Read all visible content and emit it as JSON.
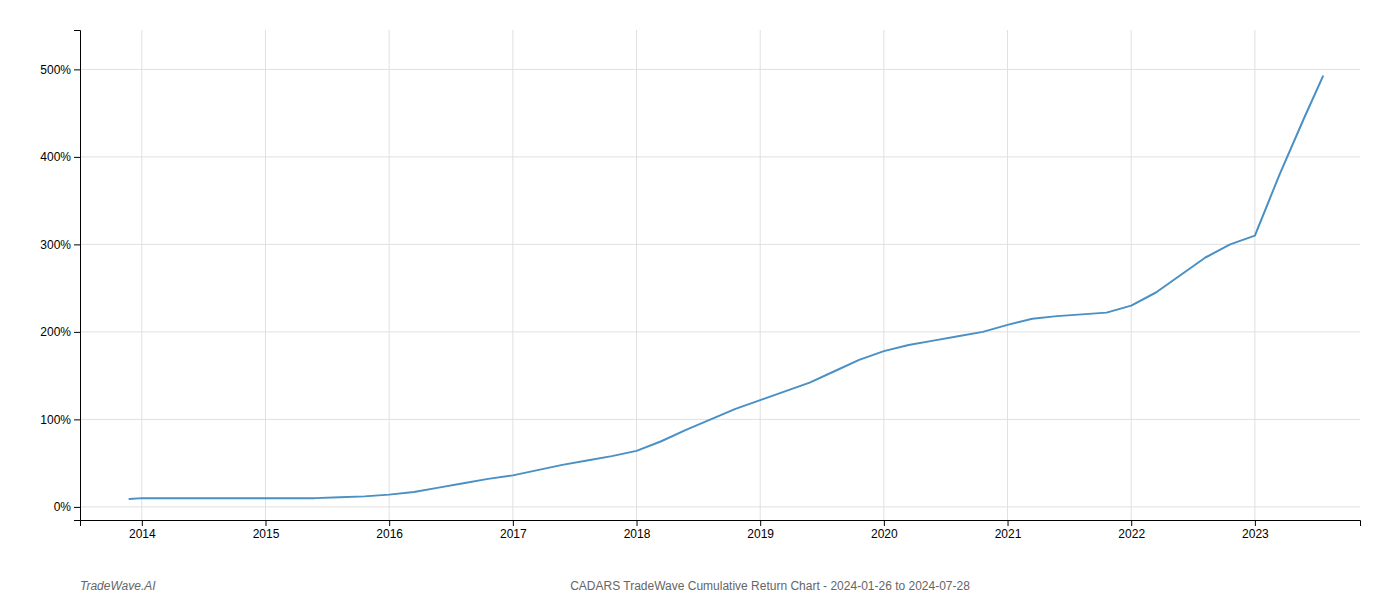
{
  "chart_data": {
    "type": "line",
    "annotations": [
      "TradeWave.AI",
      "CADARS TradeWave Cumulative Return Chart - 2024-01-26 to 2024-07-28"
    ],
    "color": "#4a90c4",
    "grid": true,
    "x": [
      2013.9,
      2014.0,
      2014.2,
      2014.4,
      2014.6,
      2014.8,
      2015.0,
      2015.2,
      2015.4,
      2015.6,
      2015.8,
      2016.0,
      2016.2,
      2016.4,
      2016.6,
      2016.8,
      2017.0,
      2017.2,
      2017.4,
      2017.6,
      2017.8,
      2018.0,
      2018.2,
      2018.4,
      2018.6,
      2018.8,
      2019.0,
      2019.2,
      2019.4,
      2019.6,
      2019.8,
      2020.0,
      2020.2,
      2020.4,
      2020.6,
      2020.8,
      2021.0,
      2021.2,
      2021.4,
      2021.6,
      2021.8,
      2022.0,
      2022.2,
      2022.4,
      2022.6,
      2022.8,
      2023.0,
      2023.2,
      2023.4,
      2023.55
    ],
    "values": [
      9,
      10,
      10,
      10,
      10,
      10,
      10,
      10,
      10,
      11,
      12,
      14,
      17,
      22,
      27,
      32,
      36,
      42,
      48,
      53,
      58,
      64,
      75,
      88,
      100,
      112,
      122,
      132,
      142,
      155,
      168,
      178,
      185,
      190,
      195,
      200,
      208,
      215,
      218,
      220,
      222,
      230,
      245,
      265,
      285,
      300,
      310,
      380,
      445,
      492
    ],
    "xlim": [
      2013.5,
      2023.85
    ],
    "ylim": [
      -15,
      545
    ],
    "xticks": [
      2014,
      2015,
      2016,
      2017,
      2018,
      2019,
      2020,
      2021,
      2022,
      2023
    ],
    "yticks": [
      {
        "value": 0,
        "label": "0%"
      },
      {
        "value": 100,
        "label": "100%"
      },
      {
        "value": 200,
        "label": "200%"
      },
      {
        "value": 300,
        "label": "300%"
      },
      {
        "value": 400,
        "label": "400%"
      },
      {
        "value": 500,
        "label": "500%"
      }
    ]
  }
}
